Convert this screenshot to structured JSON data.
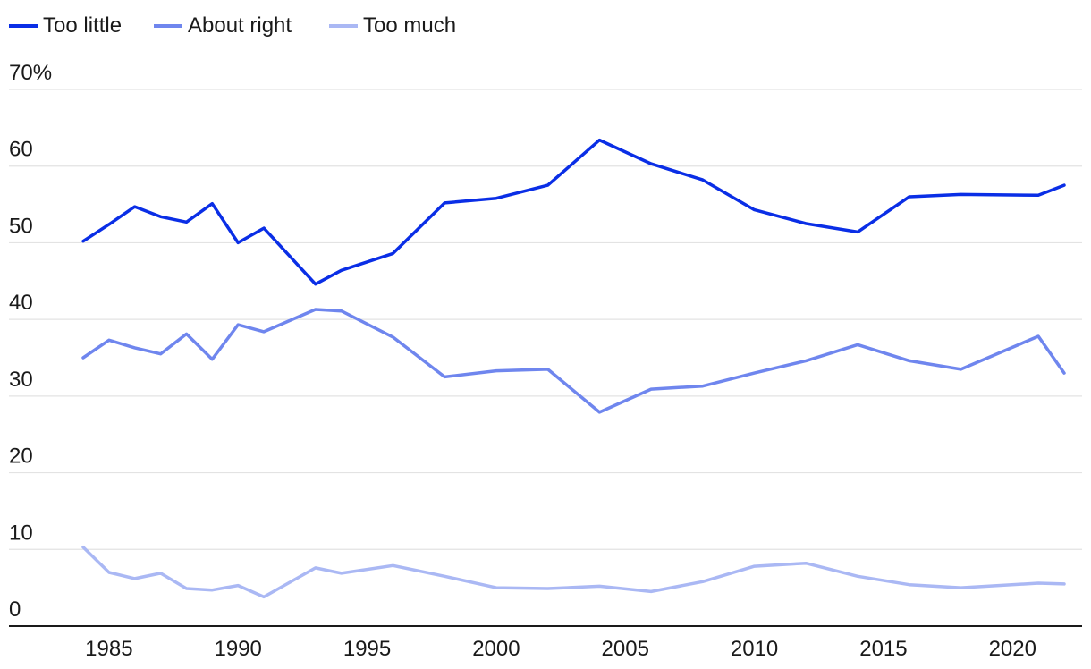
{
  "chart_data": {
    "type": "line",
    "title": "",
    "xlabel": "",
    "ylabel": "",
    "xlim": [
      1981,
      2023
    ],
    "ylim": [
      0,
      70
    ],
    "x_ticks": [
      1985,
      1990,
      1995,
      2000,
      2005,
      2010,
      2015,
      2020
    ],
    "y_ticks": [
      0,
      10,
      20,
      30,
      40,
      50,
      60,
      70
    ],
    "y_tick_labels": [
      "0",
      "10",
      "20",
      "30",
      "40",
      "50",
      "60",
      "70%"
    ],
    "grid": "horizontal",
    "legend_position": "top-left",
    "series": [
      {
        "name": "Too little",
        "color": "#0a2ee6",
        "x": [
          1984,
          1985,
          1986,
          1987,
          1988,
          1989,
          1990,
          1991,
          1993,
          1994,
          1996,
          1998,
          2000,
          2002,
          2004,
          2006,
          2008,
          2010,
          2012,
          2014,
          2016,
          2018,
          2021,
          2022
        ],
        "values": [
          50.2,
          52.4,
          54.7,
          53.4,
          52.7,
          55.1,
          50.0,
          51.9,
          44.6,
          46.4,
          48.6,
          55.2,
          55.8,
          57.5,
          63.4,
          60.3,
          58.2,
          54.3,
          52.5,
          51.4,
          56.0,
          56.3,
          56.2,
          57.5
        ]
      },
      {
        "name": "About right",
        "color": "#6f86ee",
        "x": [
          1984,
          1985,
          1986,
          1987,
          1988,
          1989,
          1990,
          1991,
          1993,
          1994,
          1996,
          1998,
          2000,
          2002,
          2004,
          2006,
          2008,
          2010,
          2012,
          2014,
          2016,
          2018,
          2021,
          2022
        ],
        "values": [
          35.0,
          37.3,
          36.3,
          35.5,
          38.1,
          34.8,
          39.3,
          38.4,
          41.3,
          41.1,
          37.7,
          32.5,
          33.3,
          33.5,
          27.9,
          30.9,
          31.3,
          33.0,
          34.6,
          36.7,
          34.6,
          33.5,
          37.8,
          33.0
        ]
      },
      {
        "name": "Too much",
        "color": "#aab8f4",
        "x": [
          1984,
          1985,
          1986,
          1987,
          1988,
          1989,
          1990,
          1991,
          1993,
          1994,
          1996,
          1998,
          2000,
          2002,
          2004,
          2006,
          2008,
          2010,
          2012,
          2014,
          2016,
          2018,
          2021,
          2022
        ],
        "values": [
          10.3,
          7.0,
          6.2,
          6.9,
          4.9,
          4.7,
          5.3,
          3.8,
          7.6,
          6.9,
          7.9,
          6.5,
          5.0,
          4.9,
          5.2,
          4.5,
          5.8,
          7.8,
          8.2,
          6.5,
          5.4,
          5.0,
          5.6,
          5.5
        ]
      }
    ]
  }
}
